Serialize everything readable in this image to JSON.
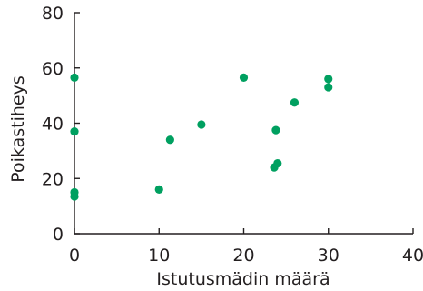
{
  "chart_data": {
    "type": "scatter",
    "title": "",
    "xlabel": "Istutusmädin määrä",
    "ylabel": "Poikastiheys",
    "xlim": [
      0,
      40
    ],
    "ylim": [
      0,
      80
    ],
    "x_ticks": [
      0,
      10,
      20,
      30,
      40
    ],
    "y_ticks": [
      0,
      20,
      40,
      60,
      80
    ],
    "x_tick_labels": [
      "0",
      "10",
      "20",
      "30",
      "40"
    ],
    "y_tick_labels": [
      "0",
      "20",
      "40",
      "60",
      "80"
    ],
    "grid": false,
    "marker_color": "#00a060",
    "points": [
      {
        "x": 0,
        "y": 56.5
      },
      {
        "x": 0,
        "y": 37
      },
      {
        "x": 0,
        "y": 15
      },
      {
        "x": 0,
        "y": 13.5
      },
      {
        "x": 10,
        "y": 16
      },
      {
        "x": 11.3,
        "y": 34
      },
      {
        "x": 15,
        "y": 39.5
      },
      {
        "x": 20,
        "y": 56.5
      },
      {
        "x": 23.6,
        "y": 24
      },
      {
        "x": 23.8,
        "y": 37.5
      },
      {
        "x": 24,
        "y": 25.5
      },
      {
        "x": 26,
        "y": 47.5
      },
      {
        "x": 30,
        "y": 56
      },
      {
        "x": 30,
        "y": 53
      }
    ]
  }
}
